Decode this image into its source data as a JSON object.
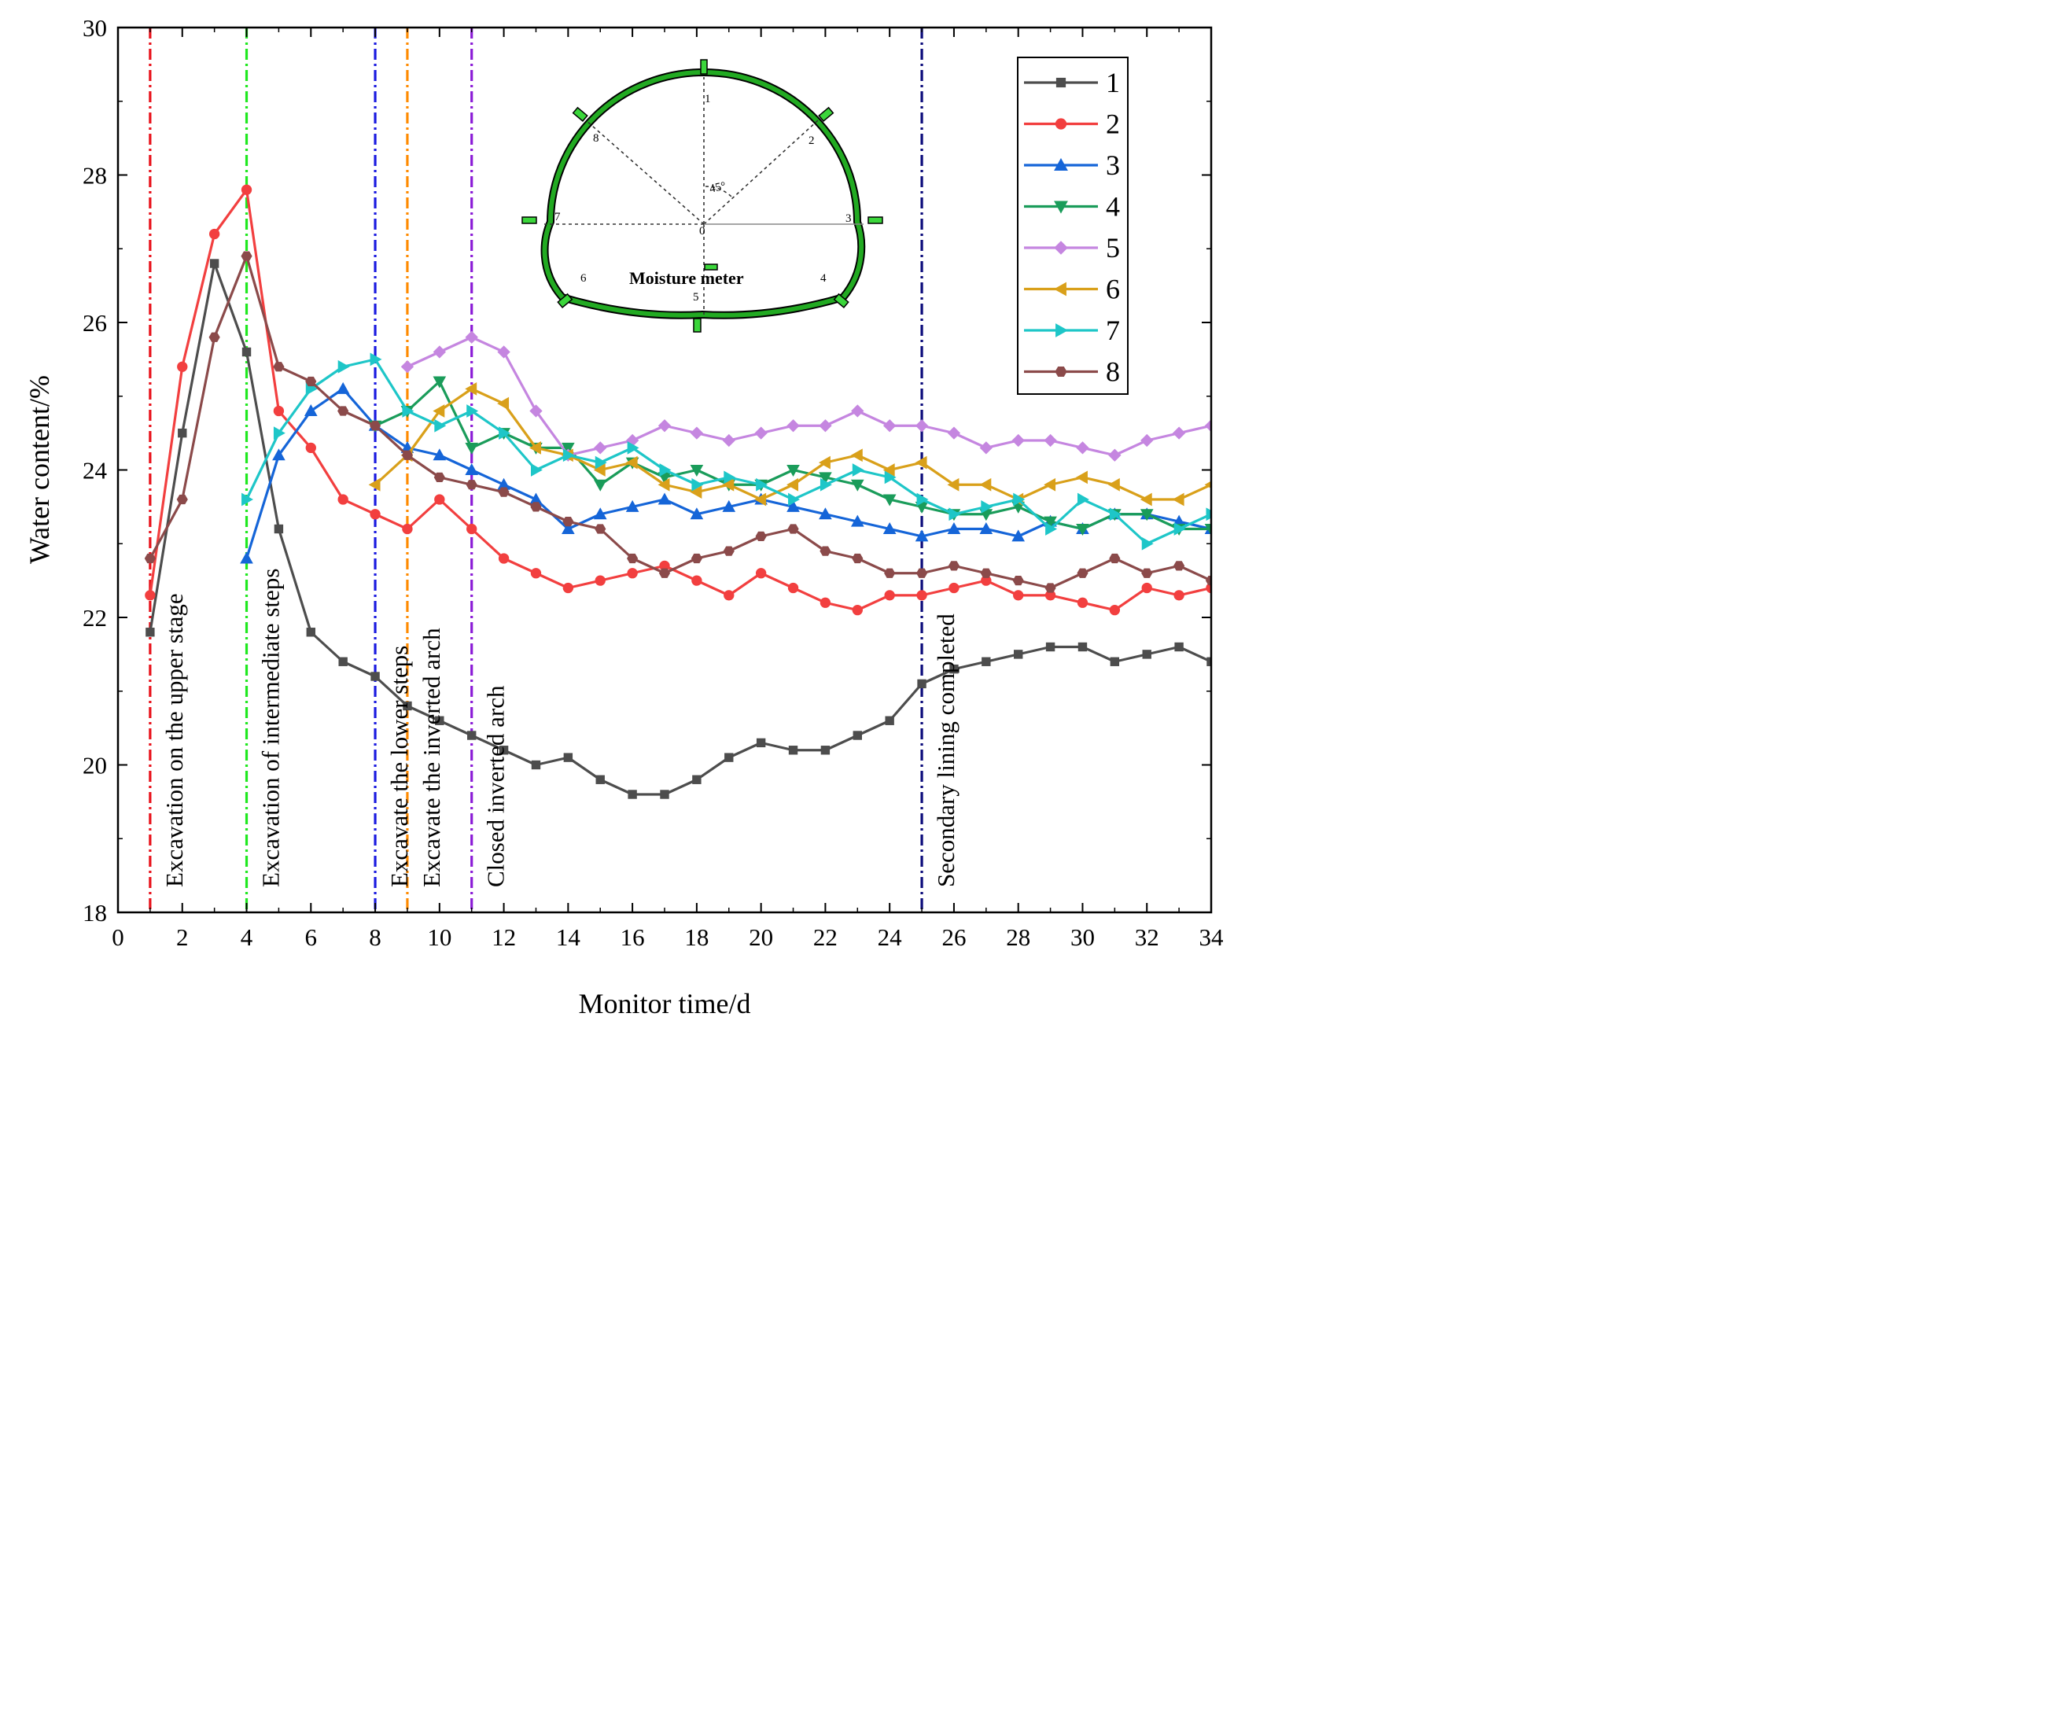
{
  "chart_data": {
    "type": "line",
    "xlabel": "Monitor time/d",
    "ylabel": "Water content/%",
    "xlim": [
      0,
      34
    ],
    "ylim": [
      18,
      30
    ],
    "xticks": [
      0,
      2,
      4,
      6,
      8,
      10,
      12,
      14,
      16,
      18,
      20,
      22,
      24,
      26,
      28,
      30,
      32,
      34
    ],
    "yticks": [
      18,
      20,
      22,
      24,
      26,
      28,
      30
    ],
    "legend_position": "top-right",
    "events": [
      {
        "x": 1,
        "label": "Excavation on the upper stage",
        "color": "#e8101a"
      },
      {
        "x": 4,
        "label": "Excavation of intermediate steps",
        "color": "#1fe81f"
      },
      {
        "x": 8,
        "label": "Excavate the lower steps",
        "color": "#1a1ae0"
      },
      {
        "x": 9,
        "label": "Excavate the inverted arch",
        "color": "#ff8a00"
      },
      {
        "x": 11,
        "label": "Closed inverted arch",
        "color": "#8a1ad6"
      },
      {
        "x": 25,
        "label": "Secondary lining completed",
        "color": "#0a0a7a"
      }
    ],
    "series": [
      {
        "name": "1",
        "color": "#4d4d4d",
        "marker": "square",
        "x": [
          1,
          2,
          3,
          4,
          5,
          6,
          7,
          8,
          9,
          10,
          11,
          12,
          13,
          14,
          15,
          16,
          17,
          18,
          19,
          20,
          21,
          22,
          23,
          24,
          25,
          26,
          27,
          28,
          29,
          30,
          31,
          32,
          33,
          34
        ],
        "y": [
          21.8,
          24.5,
          26.8,
          25.6,
          23.2,
          21.8,
          21.4,
          21.2,
          20.8,
          20.6,
          20.4,
          20.2,
          20.0,
          20.1,
          19.8,
          19.6,
          19.6,
          19.8,
          20.1,
          20.3,
          20.2,
          20.2,
          20.4,
          20.6,
          21.1,
          21.3,
          21.4,
          21.5,
          21.6,
          21.6,
          21.4,
          21.5,
          21.6,
          21.4
        ]
      },
      {
        "name": "2",
        "color": "#f23f3f",
        "marker": "circle",
        "x": [
          1,
          2,
          3,
          4,
          5,
          6,
          7,
          8,
          9,
          10,
          11,
          12,
          13,
          14,
          15,
          16,
          17,
          18,
          19,
          20,
          21,
          22,
          23,
          24,
          25,
          26,
          27,
          28,
          29,
          30,
          31,
          32,
          33,
          34
        ],
        "y": [
          22.3,
          25.4,
          27.2,
          27.8,
          24.8,
          24.3,
          23.6,
          23.4,
          23.2,
          23.6,
          23.2,
          22.8,
          22.6,
          22.4,
          22.5,
          22.6,
          22.7,
          22.5,
          22.3,
          22.6,
          22.4,
          22.2,
          22.1,
          22.3,
          22.3,
          22.4,
          22.5,
          22.3,
          22.3,
          22.2,
          22.1,
          22.4,
          22.3,
          22.4
        ]
      },
      {
        "name": "3",
        "color": "#1565d8",
        "marker": "triangle-up",
        "x": [
          4,
          5,
          6,
          7,
          8,
          9,
          10,
          11,
          12,
          13,
          14,
          15,
          16,
          17,
          18,
          19,
          20,
          21,
          22,
          23,
          24,
          25,
          26,
          27,
          28,
          29,
          30,
          31,
          32,
          33,
          34
        ],
        "y": [
          22.8,
          24.2,
          24.8,
          25.1,
          24.6,
          24.3,
          24.2,
          24.0,
          23.8,
          23.6,
          23.2,
          23.4,
          23.5,
          23.6,
          23.4,
          23.5,
          23.6,
          23.5,
          23.4,
          23.3,
          23.2,
          23.1,
          23.2,
          23.2,
          23.1,
          23.3,
          23.2,
          23.4,
          23.4,
          23.3,
          23.2
        ]
      },
      {
        "name": "4",
        "color": "#1a9c5a",
        "marker": "triangle-down",
        "x": [
          8,
          9,
          10,
          11,
          12,
          13,
          14,
          15,
          16,
          17,
          18,
          19,
          20,
          21,
          22,
          23,
          24,
          25,
          26,
          27,
          28,
          29,
          30,
          31,
          32,
          33,
          34
        ],
        "y": [
          24.6,
          24.8,
          25.2,
          24.3,
          24.5,
          24.3,
          24.3,
          23.8,
          24.1,
          23.9,
          24.0,
          23.8,
          23.8,
          24.0,
          23.9,
          23.8,
          23.6,
          23.5,
          23.4,
          23.4,
          23.5,
          23.3,
          23.2,
          23.4,
          23.4,
          23.2,
          23.2
        ]
      },
      {
        "name": "5",
        "color": "#c586e0",
        "marker": "diamond",
        "x": [
          9,
          10,
          11,
          12,
          13,
          14,
          15,
          16,
          17,
          18,
          19,
          20,
          21,
          22,
          23,
          24,
          25,
          26,
          27,
          28,
          29,
          30,
          31,
          32,
          33,
          34
        ],
        "y": [
          25.4,
          25.6,
          25.8,
          25.6,
          24.8,
          24.2,
          24.3,
          24.4,
          24.6,
          24.5,
          24.4,
          24.5,
          24.6,
          24.6,
          24.8,
          24.6,
          24.6,
          24.5,
          24.3,
          24.4,
          24.4,
          24.3,
          24.2,
          24.4,
          24.5,
          24.6
        ]
      },
      {
        "name": "6",
        "color": "#d9a01a",
        "marker": "triangle-left",
        "x": [
          8,
          9,
          10,
          11,
          12,
          13,
          14,
          15,
          16,
          17,
          18,
          19,
          20,
          21,
          22,
          23,
          24,
          25,
          26,
          27,
          28,
          29,
          30,
          31,
          32,
          33,
          34
        ],
        "y": [
          23.8,
          24.2,
          24.8,
          25.1,
          24.9,
          24.3,
          24.2,
          24.0,
          24.1,
          23.8,
          23.7,
          23.8,
          23.6,
          23.8,
          24.1,
          24.2,
          24.0,
          24.1,
          23.8,
          23.8,
          23.6,
          23.8,
          23.9,
          23.8,
          23.6,
          23.6,
          23.8
        ]
      },
      {
        "name": "7",
        "color": "#1ec6c8",
        "marker": "triangle-right",
        "x": [
          4,
          5,
          6,
          7,
          8,
          9,
          10,
          11,
          12,
          13,
          14,
          15,
          16,
          17,
          18,
          19,
          20,
          21,
          22,
          23,
          24,
          25,
          26,
          27,
          28,
          29,
          30,
          31,
          32,
          33,
          34
        ],
        "y": [
          23.6,
          24.5,
          25.1,
          25.4,
          25.5,
          24.8,
          24.6,
          24.8,
          24.5,
          24.0,
          24.2,
          24.1,
          24.3,
          24.0,
          23.8,
          23.9,
          23.8,
          23.6,
          23.8,
          24.0,
          23.9,
          23.6,
          23.4,
          23.5,
          23.6,
          23.2,
          23.6,
          23.4,
          23.0,
          23.2,
          23.4
        ]
      },
      {
        "name": "8",
        "color": "#8b4a4a",
        "marker": "hexagon",
        "x": [
          1,
          2,
          3,
          4,
          5,
          6,
          7,
          8,
          9,
          10,
          11,
          12,
          13,
          14,
          15,
          16,
          17,
          18,
          19,
          20,
          21,
          22,
          23,
          24,
          25,
          26,
          27,
          28,
          29,
          30,
          31,
          32,
          33,
          34
        ],
        "y": [
          22.8,
          23.6,
          25.8,
          26.9,
          25.4,
          25.2,
          24.8,
          24.6,
          24.2,
          23.9,
          23.8,
          23.7,
          23.5,
          23.3,
          23.2,
          22.8,
          22.6,
          22.8,
          22.9,
          23.1,
          23.2,
          22.9,
          22.8,
          22.6,
          22.6,
          22.7,
          22.6,
          22.5,
          22.4,
          22.6,
          22.8,
          22.6,
          22.7,
          22.5
        ]
      }
    ]
  },
  "inset": {
    "title": "Moisture meter",
    "angle_label": "45°",
    "center_label": "0",
    "points": [
      "1",
      "2",
      "3",
      "4",
      "5",
      "6",
      "7",
      "8"
    ]
  }
}
